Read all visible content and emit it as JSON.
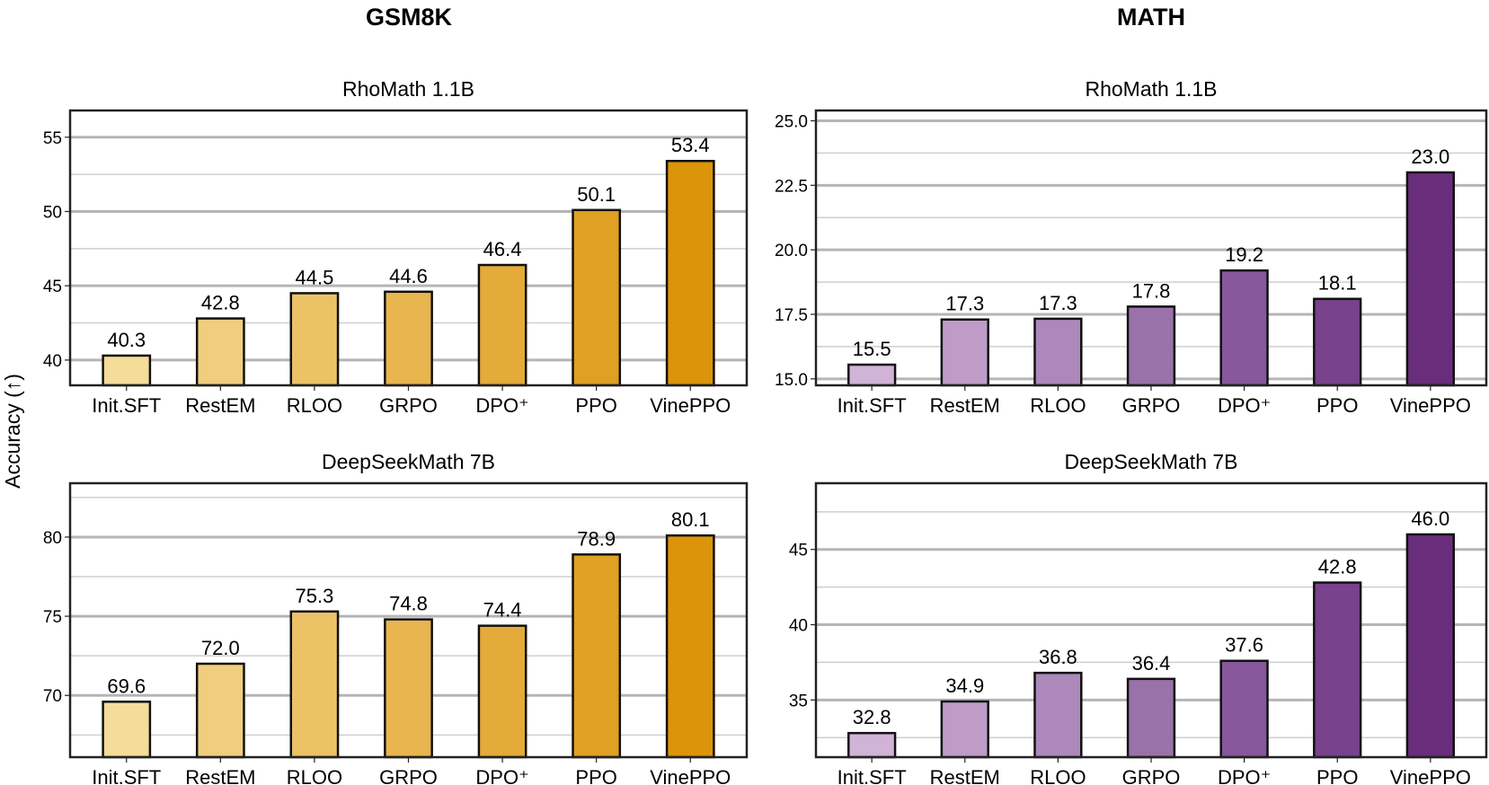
{
  "ylabel": "Accuracy (↑)",
  "columns": [
    "GSM8K",
    "MATH"
  ],
  "chart_data": [
    {
      "type": "bar",
      "dataset": "GSM8K",
      "title": "RhoMath 1.1B",
      "categories": [
        "Init.SFT",
        "RestEM",
        "RLOO",
        "GRPO",
        "DPO⁺",
        "PPO",
        "VinePPO"
      ],
      "values": [
        40.3,
        42.8,
        44.5,
        44.6,
        46.4,
        50.1,
        53.4
      ],
      "value_labels": [
        "40.3",
        "42.8",
        "44.5",
        "44.6",
        "46.4",
        "50.1",
        "53.4"
      ],
      "ylim": [
        38.3,
        56.8
      ],
      "yticks": [
        40,
        45,
        50,
        55
      ],
      "ytick_labels": [
        "40",
        "45",
        "50",
        "55"
      ],
      "minor_grid": [
        42.5,
        47.5,
        52.5
      ],
      "colors": [
        "#f5dc98",
        "#f1cd7e",
        "#ecc266",
        "#e8b54e",
        "#e4aa3a",
        "#e0a023",
        "#dc940a"
      ],
      "grid": true
    },
    {
      "type": "bar",
      "dataset": "MATH",
      "title": "RhoMath 1.1B",
      "categories": [
        "Init.SFT",
        "RestEM",
        "RLOO",
        "GRPO",
        "DPO⁺",
        "PPO",
        "VinePPO"
      ],
      "values": [
        15.55,
        17.3,
        17.33,
        17.8,
        19.2,
        18.1,
        23.0
      ],
      "value_labels": [
        "15.5",
        "17.3",
        "17.3",
        "17.8",
        "19.2",
        "18.1",
        "23.0"
      ],
      "ylim": [
        14.75,
        25.4
      ],
      "yticks": [
        15,
        17.5,
        20,
        22.5,
        25
      ],
      "ytick_labels": [
        "15.0",
        "17.5",
        "20.0",
        "22.5",
        "25.0"
      ],
      "minor_grid": [
        16.25,
        18.75,
        21.25,
        23.75
      ],
      "colors": [
        "#d0b3d6",
        "#bf9cc8",
        "#ad88ba",
        "#9a72aa",
        "#87589b",
        "#78428c",
        "#6a2d7c"
      ],
      "grid": true
    },
    {
      "type": "bar",
      "dataset": "GSM8K",
      "title": "DeepSeekMath 7B",
      "categories": [
        "Init.SFT",
        "RestEM",
        "RLOO",
        "GRPO",
        "DPO⁺",
        "PPO",
        "VinePPO"
      ],
      "values": [
        69.6,
        72.0,
        75.3,
        74.8,
        74.4,
        78.9,
        80.1
      ],
      "value_labels": [
        "69.6",
        "72.0",
        "75.3",
        "74.8",
        "74.4",
        "78.9",
        "80.1"
      ],
      "ylim": [
        66.1,
        83.4
      ],
      "yticks": [
        70,
        75,
        80
      ],
      "ytick_labels": [
        "70",
        "75",
        "80"
      ],
      "minor_grid": [
        67.5,
        72.5,
        77.5,
        82.5
      ],
      "colors": [
        "#f5dc98",
        "#f1cd7e",
        "#ecc266",
        "#e8b54e",
        "#e4aa3a",
        "#e0a023",
        "#dc940a"
      ],
      "grid": true
    },
    {
      "type": "bar",
      "dataset": "MATH",
      "title": "DeepSeekMath 7B",
      "categories": [
        "Init.SFT",
        "RestEM",
        "RLOO",
        "GRPO",
        "DPO⁺",
        "PPO",
        "VinePPO"
      ],
      "values": [
        32.8,
        34.9,
        36.8,
        36.4,
        37.6,
        42.8,
        46.0
      ],
      "value_labels": [
        "32.8",
        "34.9",
        "36.8",
        "36.4",
        "37.6",
        "42.8",
        "46.0"
      ],
      "ylim": [
        31.2,
        49.4
      ],
      "yticks": [
        35,
        40,
        45
      ],
      "ytick_labels": [
        "35",
        "40",
        "45"
      ],
      "minor_grid": [
        32.5,
        37.5,
        42.5,
        47.5
      ],
      "colors": [
        "#d0b3d6",
        "#bf9cc8",
        "#ad88ba",
        "#9a72aa",
        "#87589b",
        "#78428c",
        "#6a2d7c"
      ],
      "grid": true
    }
  ]
}
